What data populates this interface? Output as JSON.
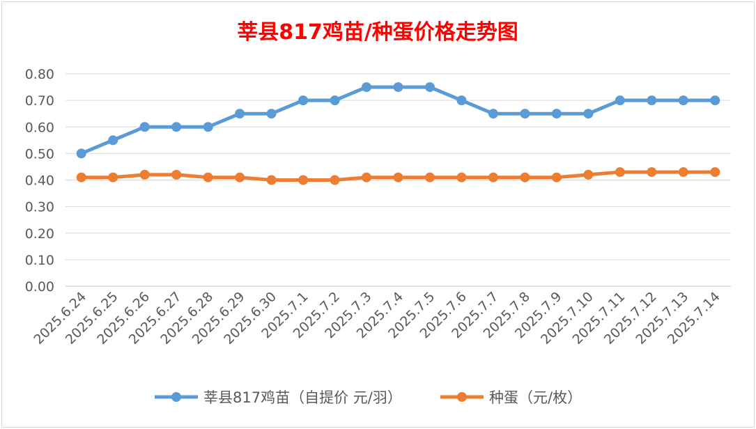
{
  "chart_data": {
    "type": "line",
    "title": "莘县817鸡苗/种蛋价格走势图",
    "categories": [
      "2025.6.24",
      "2025.6.25",
      "2025.6.26",
      "2025.6.27",
      "2025.6.28",
      "2025.6.29",
      "2025.6.30",
      "2025.7.1",
      "2025.7.2",
      "2025.7.3",
      "2025.7.4",
      "2025.7.5",
      "2025.7.6",
      "2025.7.7",
      "2025.7.8",
      "2025.7.9",
      "2025.7.10",
      "2025.7.11",
      "2025.7.12",
      "2025.7.13",
      "2025.7.14"
    ],
    "series": [
      {
        "name": "莘县817鸡苗（自提价 元/羽）",
        "color": "#5b9bd5",
        "values": [
          0.5,
          0.55,
          0.6,
          0.6,
          0.6,
          0.65,
          0.65,
          0.7,
          0.7,
          0.75,
          0.75,
          0.75,
          0.7,
          0.65,
          0.65,
          0.65,
          0.65,
          0.7,
          0.7,
          0.7,
          0.7
        ]
      },
      {
        "name": "种蛋（元/枚）",
        "color": "#ed7d31",
        "values": [
          0.41,
          0.41,
          0.42,
          0.42,
          0.41,
          0.41,
          0.4,
          0.4,
          0.4,
          0.41,
          0.41,
          0.41,
          0.41,
          0.41,
          0.41,
          0.41,
          0.42,
          0.43,
          0.43,
          0.43,
          0.43
        ]
      }
    ],
    "yticks": [
      "0.00",
      "0.10",
      "0.20",
      "0.30",
      "0.40",
      "0.50",
      "0.60",
      "0.70",
      "0.80"
    ],
    "ylim": [
      0,
      0.8
    ],
    "grid": true,
    "legend": "bottom",
    "title_color": "#ff0000"
  }
}
